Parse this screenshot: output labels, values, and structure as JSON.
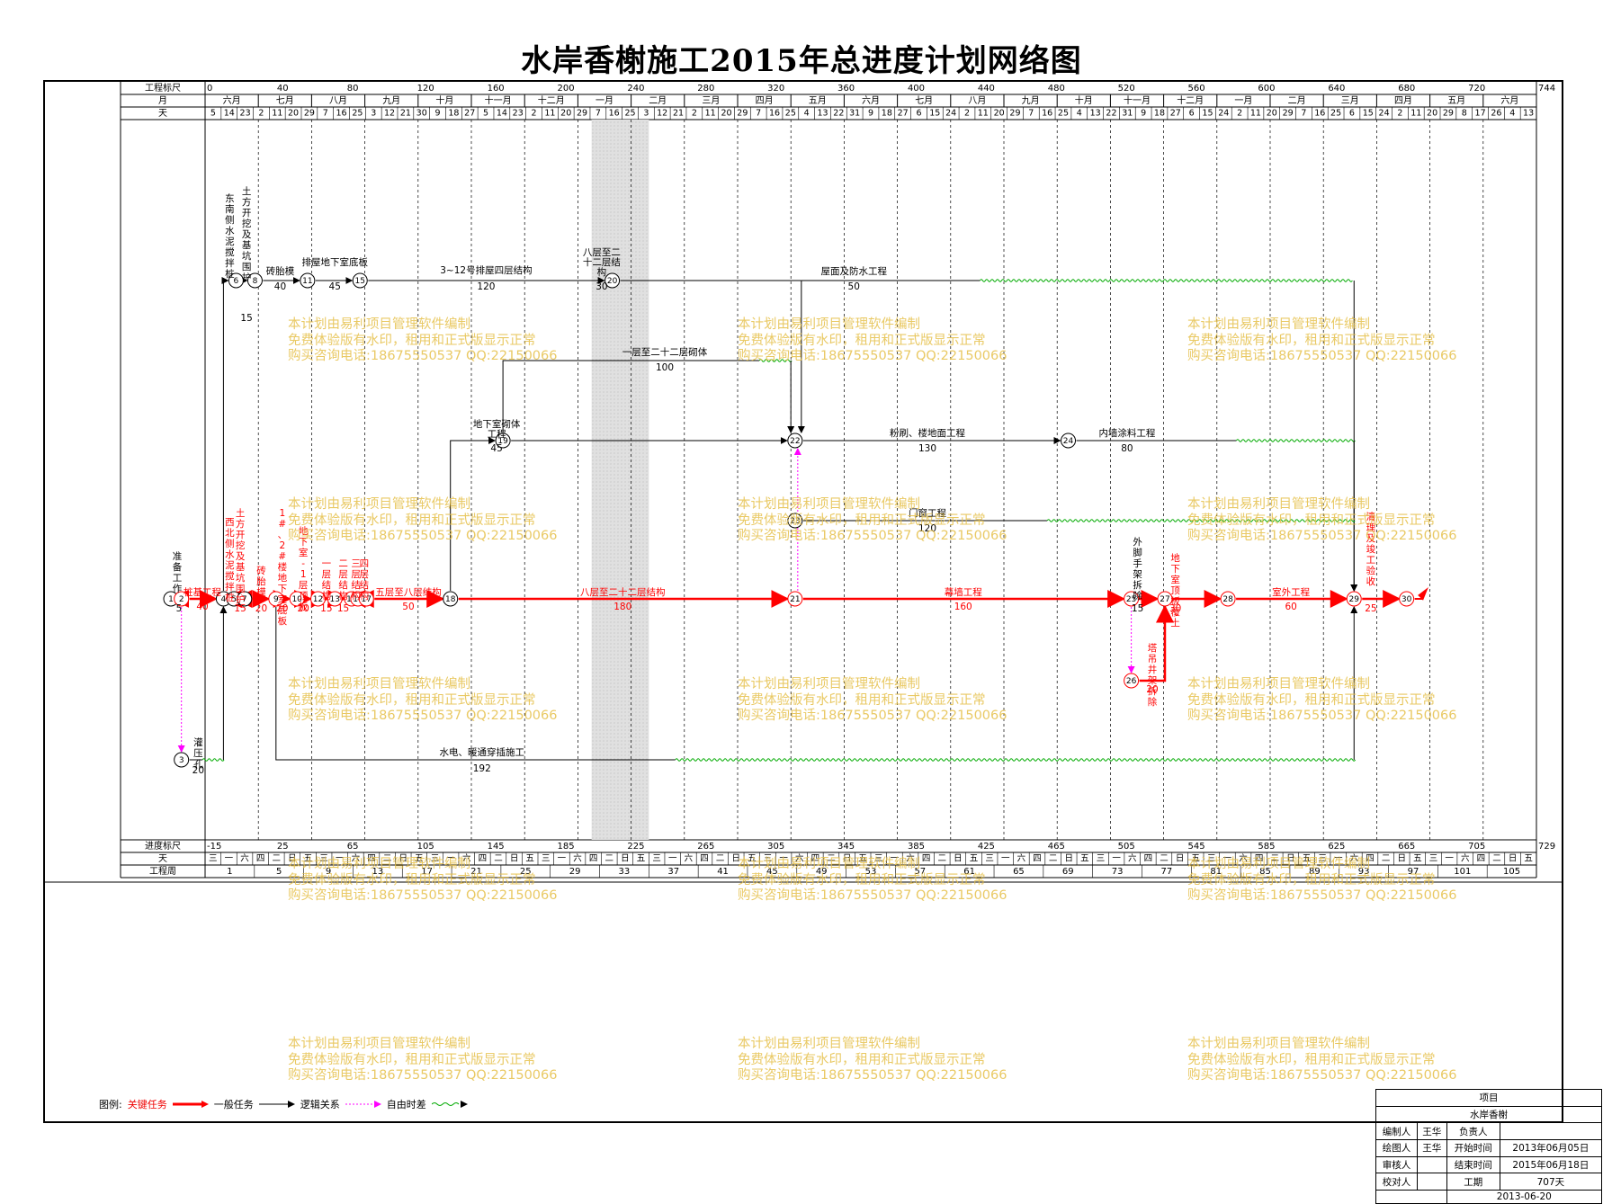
{
  "title": "水岸香榭施工2015年总进度计划网络图",
  "ruler": {
    "top_label": "工程标尺",
    "top_ticks": [
      "0",
      "40",
      "80",
      "120",
      "160",
      "200",
      "240",
      "280",
      "320",
      "360",
      "400",
      "440",
      "480",
      "520",
      "560",
      "600",
      "640",
      "680",
      "720",
      "744"
    ],
    "month_label": "月",
    "months": [
      "六月",
      "七月",
      "八月",
      "九月",
      "十月",
      "十一月",
      "十二月",
      "一月",
      "二月",
      "三月",
      "四月",
      "五月",
      "六月",
      "七月",
      "八月",
      "九月",
      "十月",
      "十一月",
      "十二月",
      "一月",
      "二月",
      "三月",
      "四月",
      "五月",
      "六月"
    ],
    "day_label": "天",
    "days": [
      "5",
      "14",
      "23",
      "2",
      "11",
      "20",
      "29",
      "7",
      "16",
      "25",
      "3",
      "12",
      "21",
      "30",
      "9",
      "18",
      "27",
      "5",
      "14",
      "23",
      "2",
      "11",
      "20",
      "29",
      "7",
      "16",
      "25",
      "3",
      "12",
      "21",
      "2",
      "11",
      "20",
      "29",
      "7",
      "16",
      "25",
      "4",
      "13",
      "22",
      "31",
      "9",
      "18",
      "27",
      "6",
      "15",
      "24",
      "2",
      "11",
      "20",
      "29",
      "7",
      "16",
      "25",
      "4",
      "13",
      "22",
      "31",
      "9",
      "18",
      "27",
      "6",
      "15",
      "24",
      "2",
      "11",
      "20",
      "29",
      "7",
      "16",
      "25",
      "6",
      "15",
      "24",
      "2",
      "11",
      "20",
      "29",
      "8",
      "17",
      "26",
      "4",
      "13"
    ],
    "progress_label": "进度标尺",
    "progress_ticks": [
      "-15",
      "25",
      "65",
      "105",
      "145",
      "185",
      "225",
      "265",
      "305",
      "345",
      "385",
      "425",
      "465",
      "505",
      "545",
      "585",
      "625",
      "665",
      "705",
      "729"
    ],
    "weekday_label": "天",
    "weekdays": [
      "三",
      "一",
      "六",
      "四",
      "二",
      "日",
      "五",
      "三",
      "一",
      "六",
      "四",
      "二",
      "日",
      "五",
      "三",
      "一",
      "六",
      "四",
      "二",
      "日",
      "五",
      "三",
      "一",
      "六",
      "四",
      "二",
      "日",
      "五",
      "三",
      "一",
      "六",
      "四",
      "二",
      "日",
      "五",
      "三",
      "一",
      "六",
      "四",
      "二",
      "日",
      "五",
      "三",
      "一",
      "六",
      "四",
      "二",
      "日",
      "五",
      "三",
      "一",
      "六",
      "四",
      "二",
      "日",
      "五",
      "三",
      "一",
      "六",
      "四",
      "二",
      "日",
      "五",
      "三",
      "一",
      "六",
      "四",
      "二",
      "日",
      "五",
      "三",
      "一",
      "六",
      "四",
      "二",
      "日",
      "五",
      "三",
      "一",
      "六",
      "四",
      "二",
      "日",
      "五"
    ],
    "week_label": "工程周",
    "weeks": [
      "1",
      "5",
      "9",
      "13",
      "17",
      "21",
      "25",
      "29",
      "33",
      "37",
      "41",
      "45",
      "49",
      "53",
      "57",
      "61",
      "65",
      "69",
      "73",
      "77",
      "81",
      "85",
      "89",
      "93",
      "97",
      "101",
      "105"
    ]
  },
  "tasks": [
    {
      "id": "t1",
      "label": "准备工作",
      "duration": "5",
      "kind": "normal"
    },
    {
      "id": "t2",
      "label": "桩基工程",
      "duration": "40",
      "kind": "critical"
    },
    {
      "id": "t3",
      "label": "灌压孔",
      "duration": "20",
      "kind": "normal"
    },
    {
      "id": "t4",
      "label": "东南侧水泥搅拌桩",
      "duration": "",
      "kind": "normal"
    },
    {
      "id": "t5",
      "label": "土方开挖及基坑围护",
      "duration": "15",
      "kind": "normal"
    },
    {
      "id": "t6",
      "label": "砖胎模",
      "duration": "40",
      "kind": "normal"
    },
    {
      "id": "t7",
      "label": "排屋地下室底板",
      "duration": "45",
      "kind": "normal"
    },
    {
      "id": "t8",
      "label": "3~12号排屋四层结构",
      "duration": "120",
      "kind": "normal"
    },
    {
      "id": "t9",
      "label": "八层至二十二层结构",
      "duration": "30",
      "kind": "normal"
    },
    {
      "id": "t10",
      "label": "屋面及防水工程",
      "duration": "50",
      "kind": "normal"
    },
    {
      "id": "t11",
      "label": "一层至二十二层砌体",
      "duration": "100",
      "kind": "normal"
    },
    {
      "id": "t12",
      "label": "地下室砌体工程",
      "duration": "45",
      "kind": "normal"
    },
    {
      "id": "t13",
      "label": "粉刷、楼地面工程",
      "duration": "130",
      "kind": "normal"
    },
    {
      "id": "t14",
      "label": "内墙涂料工程",
      "duration": "80",
      "kind": "normal"
    },
    {
      "id": "t15",
      "label": "门窗工程",
      "duration": "120",
      "kind": "normal"
    },
    {
      "id": "t16",
      "label": "西北侧水泥搅拌桩",
      "duration": "",
      "kind": "critical"
    },
    {
      "id": "t17",
      "label": "土方开挖及基坑围护",
      "duration": "15",
      "kind": "critical"
    },
    {
      "id": "t18",
      "label": "砖胎模",
      "duration": "20",
      "kind": "critical"
    },
    {
      "id": "t19",
      "label": "1#、2#楼地下室底板",
      "duration": "20",
      "kind": "critical"
    },
    {
      "id": "t20",
      "label": "地下室-1层顶板",
      "duration": "20",
      "kind": "critical"
    },
    {
      "id": "t21",
      "label": "一层结构",
      "duration": "15",
      "kind": "critical"
    },
    {
      "id": "t22",
      "label": "二层结构",
      "duration": "15",
      "kind": "critical"
    },
    {
      "id": "t23",
      "label": "三层结构",
      "duration": "",
      "kind": "critical"
    },
    {
      "id": "t24",
      "label": "四层结构",
      "duration": "",
      "kind": "critical"
    },
    {
      "id": "t25",
      "label": "五层至八层结构",
      "duration": "50",
      "kind": "critical"
    },
    {
      "id": "t26",
      "label": "八层至二十二层结构",
      "duration": "180",
      "kind": "critical"
    },
    {
      "id": "t27",
      "label": "幕墙工程",
      "duration": "160",
      "kind": "critical"
    },
    {
      "id": "t28",
      "label": "外脚手架拆除",
      "duration": "15",
      "kind": "normal"
    },
    {
      "id": "t29",
      "label": "塔吊井架拆除",
      "duration": "20",
      "kind": "critical"
    },
    {
      "id": "t30",
      "label": "地下室顶板覆土",
      "duration": "30",
      "kind": "critical"
    },
    {
      "id": "t31",
      "label": "室外工程",
      "duration": "60",
      "kind": "critical"
    },
    {
      "id": "t32",
      "label": "清理及竣工验收",
      "duration": "25",
      "kind": "critical"
    },
    {
      "id": "t33",
      "label": "水电、暖通穿插施工",
      "duration": "192",
      "kind": "normal"
    }
  ],
  "watermark": {
    "line1": "本计划由易利项目管理软件编制",
    "line2": "免费体验版有水印，租用和正式版显示正常",
    "line3": "购买咨询电话:18675550537 QQ:22150066"
  },
  "legend": {
    "label": "图例:",
    "critical": "关键任务",
    "normal": "一般任务",
    "logic": "逻辑关系",
    "free_float": "自由时差"
  },
  "info": {
    "project_label": "项目",
    "project_name": "水岸香榭",
    "author_label": "编制人",
    "author": "王华",
    "owner_label": "负责人",
    "drawer_label": "绘图人",
    "drawer": "王华",
    "start_label": "开始时间",
    "start": "2013年06月05日",
    "reviewer_label": "审核人",
    "end_label": "结束时间",
    "end": "2015年06月18日",
    "checker_label": "校对人",
    "duration_label": "工期",
    "duration": "707天",
    "date": "2013-06-20"
  },
  "colors": {
    "critical": "#ff0000",
    "normal": "#000000",
    "float": "#00aa00",
    "logic": "#ff00ff",
    "watermark": "#e6c04a"
  }
}
